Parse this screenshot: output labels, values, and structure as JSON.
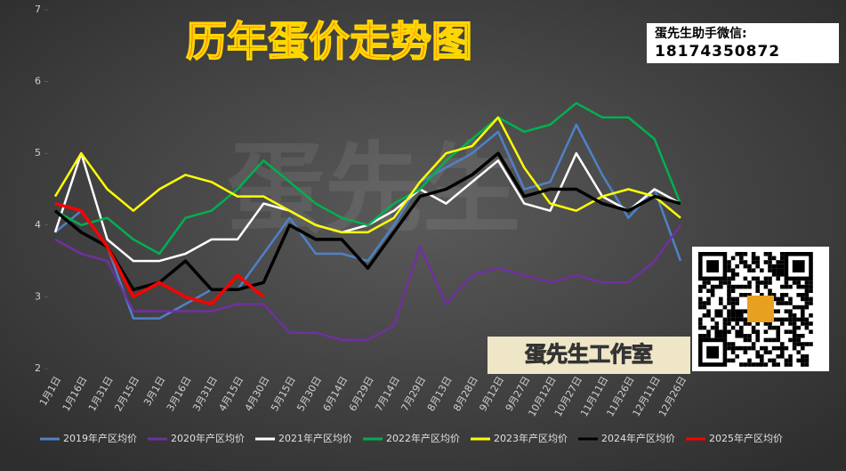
{
  "chart_data": {
    "type": "line",
    "title": "历年蛋价走势图",
    "watermark": "蛋先生",
    "wechat_label": "蛋先生助手微信:",
    "wechat_number": "18174350872",
    "studio": "蛋先生工作室",
    "categories": [
      "1月1日",
      "1月16日",
      "1月31日",
      "2月15日",
      "3月1日",
      "3月16日",
      "3月31日",
      "4月15日",
      "4月30日",
      "5月15日",
      "5月30日",
      "6月14日",
      "6月29日",
      "7月14日",
      "7月29日",
      "8月13日",
      "8月28日",
      "9月12日",
      "9月27日",
      "10月12日",
      "10月27日",
      "11月11日",
      "11月26日",
      "12月11日",
      "12月26日"
    ],
    "ylim": [
      2,
      7
    ],
    "yticks": [
      2,
      3,
      4,
      5,
      6,
      7
    ],
    "series": [
      {
        "name": "2019年产区均价",
        "color": "#4f81c7",
        "values": [
          3.9,
          4.2,
          3.7,
          2.7,
          2.7,
          2.9,
          3.1,
          3.1,
          3.6,
          4.1,
          3.6,
          3.6,
          3.5,
          4.0,
          4.6,
          4.8,
          5.0,
          5.3,
          4.5,
          4.6,
          5.4,
          4.7,
          4.1,
          4.5,
          3.5
        ]
      },
      {
        "name": "2020年产区均价",
        "color": "#7030a0",
        "values": [
          3.8,
          3.6,
          3.5,
          2.8,
          2.8,
          2.8,
          2.8,
          2.9,
          2.9,
          2.5,
          2.5,
          2.4,
          2.4,
          2.6,
          3.7,
          2.9,
          3.3,
          3.4,
          3.3,
          3.2,
          3.3,
          3.2,
          3.2,
          3.5,
          4.0
        ]
      },
      {
        "name": "2021年产区均价",
        "color": "#ffffff",
        "values": [
          3.9,
          5.0,
          3.8,
          3.5,
          3.5,
          3.6,
          3.8,
          3.8,
          4.3,
          4.2,
          4.0,
          3.9,
          4.0,
          4.2,
          4.5,
          4.3,
          4.6,
          4.9,
          4.3,
          4.2,
          5.0,
          4.4,
          4.2,
          4.5,
          4.3
        ]
      },
      {
        "name": "2022年产区均价",
        "color": "#00b050",
        "values": [
          4.2,
          4.0,
          4.1,
          3.8,
          3.6,
          4.1,
          4.2,
          4.5,
          4.9,
          4.6,
          4.3,
          4.1,
          4.0,
          4.3,
          4.5,
          4.9,
          5.2,
          5.5,
          5.3,
          5.4,
          5.7,
          5.5,
          5.5,
          5.2,
          4.3
        ]
      },
      {
        "name": "2023年产区均价",
        "color": "#ffff00",
        "values": [
          4.4,
          5.0,
          4.5,
          4.2,
          4.5,
          4.7,
          4.6,
          4.4,
          4.4,
          4.2,
          4.0,
          3.9,
          3.9,
          4.1,
          4.6,
          5.0,
          5.1,
          5.5,
          4.8,
          4.3,
          4.2,
          4.4,
          4.5,
          4.4,
          4.1
        ]
      },
      {
        "name": "2024年产区均价",
        "color": "#000000",
        "values": [
          4.2,
          3.9,
          3.7,
          3.1,
          3.2,
          3.5,
          3.1,
          3.1,
          3.2,
          4.0,
          3.8,
          3.8,
          3.4,
          3.9,
          4.4,
          4.5,
          4.7,
          5.0,
          4.4,
          4.5,
          4.5,
          4.3,
          4.2,
          4.4,
          4.3
        ]
      },
      {
        "name": "2025年产区均价",
        "color": "#ff0000",
        "values": [
          4.3,
          4.2,
          3.7,
          3.0,
          3.2,
          3.0,
          2.9,
          3.3,
          3.0,
          null,
          null,
          null,
          null,
          null,
          null,
          null,
          null,
          null,
          null,
          null,
          null,
          null,
          null,
          null,
          null
        ]
      }
    ]
  }
}
